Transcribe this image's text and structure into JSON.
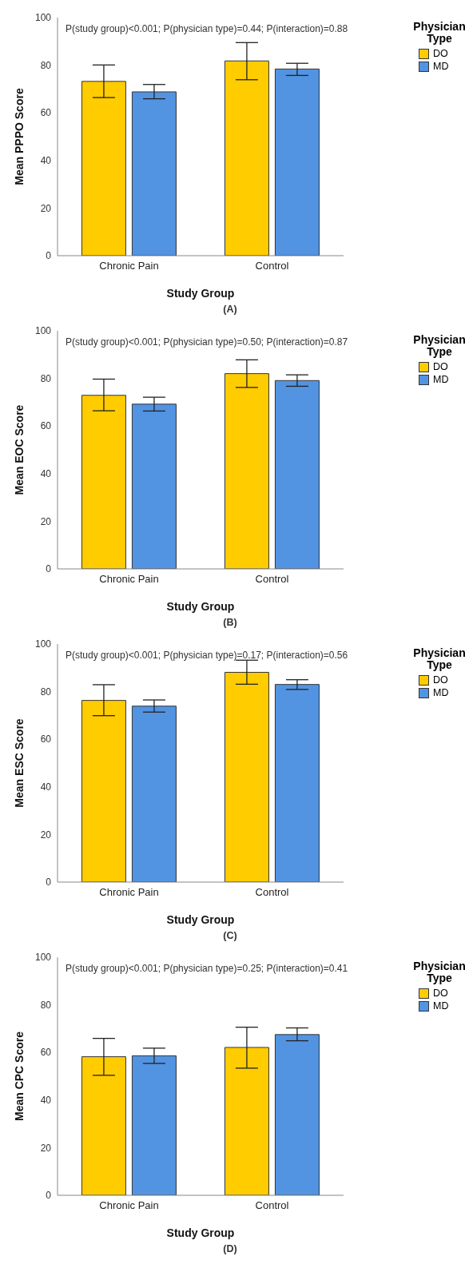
{
  "chart_data": [
    {
      "type": "bar",
      "xlabel": "Study Group",
      "ylabel": "Mean PPPO Score",
      "legend_title": "Physician Type",
      "legend": "top right",
      "categories": [
        "Chronic Pain",
        "Control"
      ],
      "ylim": [
        0,
        100
      ],
      "yticks": [
        0,
        20,
        40,
        60,
        80,
        100
      ],
      "series": [
        {
          "name": "DO",
          "color": "#ffcc00",
          "values": [
            73.2,
            81.8
          ],
          "errors": [
            [
              66.4,
              80.1
            ],
            [
              73.9,
              89.5
            ]
          ]
        },
        {
          "name": "MD",
          "color": "#5294e2",
          "values": [
            68.8,
            78.4
          ],
          "errors": [
            [
              65.9,
              71.9
            ],
            [
              75.7,
              80.8
            ]
          ]
        }
      ],
      "annotations": [
        "P(study group)<0.001; P(physician type)=0.44; P(interaction)=0.88",
        "(A)"
      ]
    },
    {
      "type": "bar",
      "xlabel": "Study Group",
      "ylabel": "Mean EOC Score",
      "legend_title": "Physician Type",
      "legend": "top right",
      "categories": [
        "Chronic Pain",
        "Control"
      ],
      "ylim": [
        0,
        100
      ],
      "yticks": [
        0,
        20,
        40,
        60,
        80,
        100
      ],
      "series": [
        {
          "name": "DO",
          "color": "#ffcc00",
          "values": [
            72.9,
            82.0
          ],
          "errors": [
            [
              66.4,
              79.7
            ],
            [
              76.2,
              87.8
            ]
          ]
        },
        {
          "name": "MD",
          "color": "#5294e2",
          "values": [
            69.2,
            79.1
          ],
          "errors": [
            [
              66.3,
              72.1
            ],
            [
              76.7,
              81.5
            ]
          ]
        }
      ],
      "annotations": [
        "P(study group)<0.001; P(physician type)=0.50; P(interaction)=0.87",
        "(B)"
      ]
    },
    {
      "type": "bar",
      "xlabel": "Study Group",
      "ylabel": "Mean ESC Score",
      "legend_title": "Physician Type",
      "legend": "top right",
      "categories": [
        "Chronic Pain",
        "Control"
      ],
      "ylim": [
        0,
        100
      ],
      "yticks": [
        0,
        20,
        40,
        60,
        80,
        100
      ],
      "series": [
        {
          "name": "DO",
          "color": "#ffcc00",
          "values": [
            76.3,
            88.1
          ],
          "errors": [
            [
              69.9,
              82.9
            ],
            [
              83.1,
              93.2
            ]
          ]
        },
        {
          "name": "MD",
          "color": "#5294e2",
          "values": [
            73.9,
            83.0
          ],
          "errors": [
            [
              71.4,
              76.5
            ],
            [
              80.9,
              85.0
            ]
          ]
        }
      ],
      "annotations": [
        "P(study group)<0.001; P(physician type)=0.17; P(interaction)=0.56",
        "(C)"
      ]
    },
    {
      "type": "bar",
      "xlabel": "Study Group",
      "ylabel": "Mean CPC Score",
      "legend_title": "Physician Type",
      "legend": "top right",
      "categories": [
        "Chronic Pain",
        "Control"
      ],
      "ylim": [
        0,
        100
      ],
      "yticks": [
        0,
        20,
        40,
        60,
        80,
        100
      ],
      "series": [
        {
          "name": "DO",
          "color": "#ffcc00",
          "values": [
            58.2,
            62.1
          ],
          "errors": [
            [
              50.4,
              65.9
            ],
            [
              53.4,
              70.6
            ]
          ]
        },
        {
          "name": "MD",
          "color": "#5294e2",
          "values": [
            58.6,
            67.5
          ],
          "errors": [
            [
              55.4,
              61.8
            ],
            [
              64.9,
              70.3
            ]
          ]
        }
      ],
      "annotations": [
        "P(study group)<0.001; P(physician type)=0.25; P(interaction)=0.41",
        "(D)"
      ]
    }
  ]
}
